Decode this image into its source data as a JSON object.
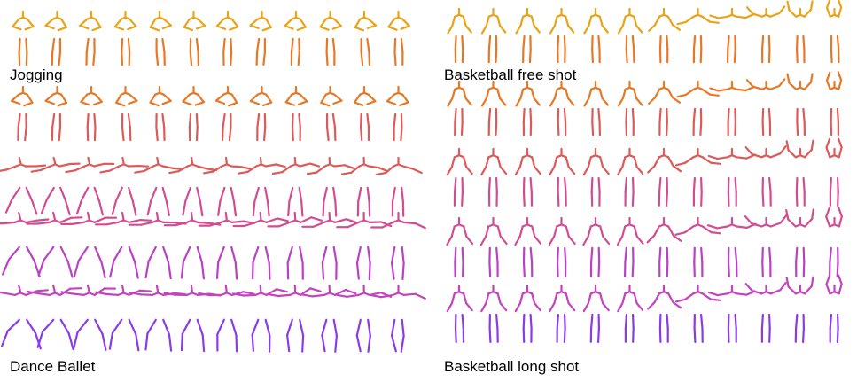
{
  "labels": {
    "top_left": "Jogging",
    "top_right": "Basketball free shot",
    "bottom_left": "Dance Ballet",
    "bottom_right": "Basketball long shot"
  },
  "colors": {
    "row_gradient": [
      "#E8A317",
      "#E6672B",
      "#D9546E",
      "#CC44B8",
      "#8A3BE8"
    ]
  },
  "panels": [
    {
      "name": "jogging",
      "frames": 12,
      "rows": 2
    },
    {
      "name": "basketball-free-shot",
      "frames": 12,
      "rows": 3
    },
    {
      "name": "dance-ballet",
      "frames": 12,
      "rows": 3
    },
    {
      "name": "basketball-long-shot",
      "frames": 12,
      "rows": 2
    }
  ]
}
